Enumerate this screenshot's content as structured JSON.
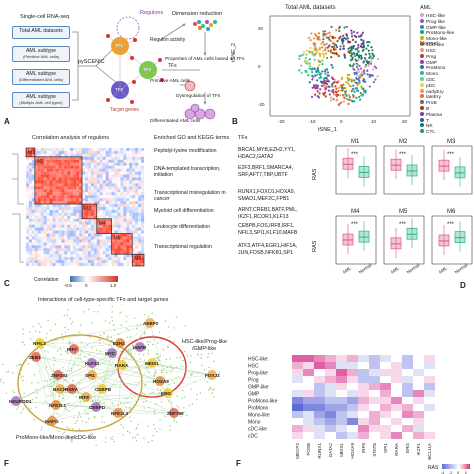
{
  "panelA": {
    "letter": "A",
    "input": "Single-cell RNA-seq",
    "boxes": [
      {
        "title": "Total AML datasets",
        "sub": ""
      },
      {
        "title": "AML subtype",
        "sub": "(Primitive AML cells)"
      },
      {
        "title": "AML subtype",
        "sub": "(Differentiated AML cells)"
      },
      {
        "title": "AML subtype",
        "sub": "(Multiple AML cell types)"
      }
    ],
    "tool": "pySCENIC",
    "regulons": "Regulons",
    "tf1": "TF1",
    "tf2": "TF2",
    "tf3": "TF3",
    "target_genes": "Target genes",
    "regulon_activity": "Regulon activity",
    "dimension_reduction": "Dimension reduction",
    "tfs": "TFs",
    "properties": "Properties of AML cells based on TFs",
    "primitive": "Primitive AML cells",
    "dysregulation": "Dysregulation of TFs",
    "differentiated": "Differentiated AML cells"
  },
  "panelB": {
    "letter": "B",
    "title": "Total AML datasets",
    "xlabel": "tSNE_1",
    "ylabel": "tSNE_2",
    "xticks": [
      "-20",
      "-10",
      "0",
      "10",
      "20"
    ],
    "yticks": [
      "20",
      "0",
      "-20"
    ],
    "legend_header_aml": "AML",
    "legend_header_normal": "Normal",
    "legend_aml": [
      {
        "label": "HSC-like",
        "color": "#e8a0c4"
      },
      {
        "label": "Prog-like",
        "color": "#9b59b6"
      },
      {
        "label": "GMP-like",
        "color": "#2e86c1"
      },
      {
        "label": "ProMono-like",
        "color": "#17a589"
      },
      {
        "label": "Mono-like",
        "color": "#d4ac0d"
      },
      {
        "label": "cDC-like",
        "color": "#ca6f1e"
      }
    ],
    "legend_normal": [
      {
        "label": "HSC",
        "color": "#f1948a"
      },
      {
        "label": "Prog",
        "color": "#c0392b"
      },
      {
        "label": "GMP",
        "color": "#8e44ad"
      },
      {
        "label": "ProMono",
        "color": "#2874a6"
      },
      {
        "label": "Mono",
        "color": "#1abc9c"
      },
      {
        "label": "cDC",
        "color": "#58d68d"
      },
      {
        "label": "pDC",
        "color": "#f4d03f"
      },
      {
        "label": "earlyEry",
        "color": "#eb984e"
      },
      {
        "label": "lateEry",
        "color": "#dc7633"
      },
      {
        "label": "ProB",
        "color": "#5d6d7e"
      },
      {
        "label": "B",
        "color": "#a04000"
      },
      {
        "label": "Plasma",
        "color": "#7d3c98"
      },
      {
        "label": "T",
        "color": "#1f618d"
      },
      {
        "label": "NK",
        "color": "#117a65"
      },
      {
        "label": "CTL",
        "color": "#229954"
      }
    ]
  },
  "panelC": {
    "letter": "C",
    "title": "Correlation analysis of regulons",
    "col_go": "Enriched GO and KEGG terms",
    "col_tfs": "TFs",
    "modules": [
      "M1",
      "M2",
      "M3",
      "M4",
      "M5",
      "M6"
    ],
    "rows": [
      {
        "term": "Peptidyl-lysine modification",
        "tfs": [
          "BRCA1,MYB,EZH2,YY1,",
          "HDAC2,GATA2"
        ]
      },
      {
        "term": "DNA-templated transcription, initiation",
        "tfs": [
          "E2F3,BRF1,SMARCA4,",
          "SRF,AFT7,TBP,UBTF"
        ]
      },
      {
        "term": "Transcriptional misregulation in cancer",
        "tfs": [
          "RUNX1,FOXO1,HOXA9,",
          "SMAD1,MEF2C,FPB1"
        ]
      },
      {
        "term": "Myeloid cell differentiation",
        "tfs": [
          "ARNT,CREB1,BATF,PML,",
          "IKZF1,RCOR1,KLF13"
        ]
      },
      {
        "term": "Leukocyte differentiation",
        "tfs": [
          "CEBPB,FOS,IRF8,IRF1,",
          "NFIL3,SPI1,KLF10,MAFB"
        ]
      },
      {
        "term": "Transcriptional regulation",
        "tfs": [
          "ATF3,ATF4,EGR1,HIF1A,",
          "JUN,FOSB,NFKB1,SP1"
        ]
      }
    ],
    "colorbar_label": "Correlation",
    "colorbar_ticks": [
      "-0.5",
      "0",
      "1.0"
    ]
  },
  "panelD": {
    "letter": "D",
    "ylabel": "RAS",
    "sig": "***",
    "groups": [
      "AML",
      "Normal"
    ],
    "colors": {
      "AML": "#e05780",
      "Normal": "#2bb08a"
    },
    "chart_data": [
      {
        "type": "box",
        "title": "M1",
        "series": [
          {
            "name": "AML",
            "median": 0.62
          },
          {
            "name": "Normal",
            "median": 0.45
          }
        ]
      },
      {
        "type": "box",
        "title": "M2",
        "series": [
          {
            "name": "AML",
            "median": 0.6
          },
          {
            "name": "Normal",
            "median": 0.48
          }
        ]
      },
      {
        "type": "box",
        "title": "M3",
        "series": [
          {
            "name": "AML",
            "median": 0.58
          },
          {
            "name": "Normal",
            "median": 0.44
          }
        ]
      },
      {
        "type": "box",
        "title": "M4",
        "series": [
          {
            "name": "AML",
            "median": 0.5
          },
          {
            "name": "Normal",
            "median": 0.56
          }
        ]
      },
      {
        "type": "box",
        "title": "M5",
        "series": [
          {
            "name": "AML",
            "median": 0.42
          },
          {
            "name": "Normal",
            "median": 0.62
          }
        ]
      },
      {
        "type": "box",
        "title": "M6",
        "series": [
          {
            "name": "AML",
            "median": 0.48
          },
          {
            "name": "Normal",
            "median": 0.55
          }
        ]
      }
    ]
  },
  "panelE": {
    "letter": "F",
    "title": "Interactions of cell-type-specific TFs and target genes",
    "group_hsc": [
      "HSC-like/Prog-like",
      "/GMP-like"
    ],
    "group_mono": "ProMono-like/Mono-like/cDC-like",
    "nodes": [
      "AEBP2",
      "ZEB1",
      "MYC",
      "NFIL3",
      "EZH2",
      "SPI1",
      "IRF7",
      "MAFB",
      "RARA",
      "NFE2L1",
      "BACH1",
      "ZNF281",
      "KLF13",
      "CEBPB",
      "MAFG",
      "IRF8",
      "RXRA",
      "CEBPD",
      "ERG",
      "NFE2L3",
      "FOXJ3",
      "ZNF789",
      "NEUROD1",
      "MEIS1",
      "HOXA9"
    ]
  },
  "panelF": {
    "letter": "F",
    "rows": [
      "HSC-like",
      "HSC",
      "Prog-like",
      "Prog",
      "GMP-like",
      "GMP",
      "ProMono-like",
      "ProMono",
      "Mono-like",
      "Mono",
      "cDC-like",
      "cDC"
    ],
    "cols": [
      "MECP2",
      "FOSB",
      "RUNX1",
      "GATA2",
      "MEIS1",
      "HOXA9",
      "IRF8",
      "STAT6",
      "SPI1",
      "RARA",
      "ERG",
      "IKZF1",
      "BCL11A"
    ],
    "colorbar_label": "RAS",
    "colorbar_ticks": [
      "-4",
      "-2",
      "0",
      "2"
    ],
    "chart_data": {
      "type": "heatmap",
      "rows": [
        "HSC-like",
        "HSC",
        "Prog-like",
        "Prog",
        "GMP-like",
        "GMP",
        "ProMono-like",
        "ProMono",
        "Mono-like",
        "Mono",
        "cDC-like",
        "cDC"
      ],
      "cols": [
        "MECP2",
        "FOSB",
        "RUNX1",
        "GATA2",
        "MEIS1",
        "HOXA9",
        "IRF8",
        "STAT6",
        "SPI1",
        "RARA",
        "ERG",
        "IKZF1",
        "BCL11A"
      ],
      "values": [
        [
          2,
          2,
          1.5,
          1,
          0.5,
          1,
          -0.5,
          -1,
          -0.5,
          0,
          -1,
          0,
          0.5
        ],
        [
          1,
          0.5,
          2,
          1.5,
          -0.5,
          -0.5,
          0,
          -1,
          0,
          0.5,
          -1,
          0,
          -0.5
        ],
        [
          0.5,
          1.5,
          0,
          0.5,
          2,
          1,
          -1,
          -0.5,
          0.5,
          0.5,
          0,
          -0.5,
          0
        ],
        [
          -0.5,
          0,
          0.5,
          1,
          1.5,
          0.5,
          -1,
          -1,
          0,
          0.5,
          -0.5,
          0,
          0.5
        ],
        [
          0,
          0,
          -1,
          -0.5,
          0.5,
          0,
          0.5,
          1,
          1.5,
          0,
          -1,
          0,
          -1
        ],
        [
          -0.5,
          0.5,
          -1,
          -0.5,
          0,
          -0.5,
          0.5,
          0,
          1,
          0,
          -1,
          1.5,
          -0.5
        ],
        [
          -2,
          -1.5,
          -1.5,
          -1,
          -1,
          -1.5,
          1,
          0.5,
          0.5,
          1.5,
          0,
          0.5,
          0
        ],
        [
          -2.5,
          -2,
          -2,
          -1.5,
          -1.5,
          -1,
          0.5,
          0,
          1,
          0.5,
          1,
          0,
          -0.5
        ],
        [
          -1,
          -0.5,
          -1.5,
          -2,
          -1,
          -0.5,
          0,
          1,
          0.5,
          0,
          1.5,
          1,
          0
        ],
        [
          0,
          -0.5,
          -1,
          -1.5,
          -1,
          -2,
          0.5,
          1,
          0,
          0.5,
          0,
          0.5,
          0
        ],
        [
          1,
          0.5,
          -0.5,
          -1,
          -0.5,
          0,
          1.5,
          0.5,
          0.5,
          0,
          1,
          -0.5,
          0
        ],
        [
          0.5,
          0,
          -0.5,
          0,
          -1,
          -0.5,
          1,
          0,
          0.5,
          1.5,
          0,
          1,
          0.5
        ]
      ]
    }
  }
}
